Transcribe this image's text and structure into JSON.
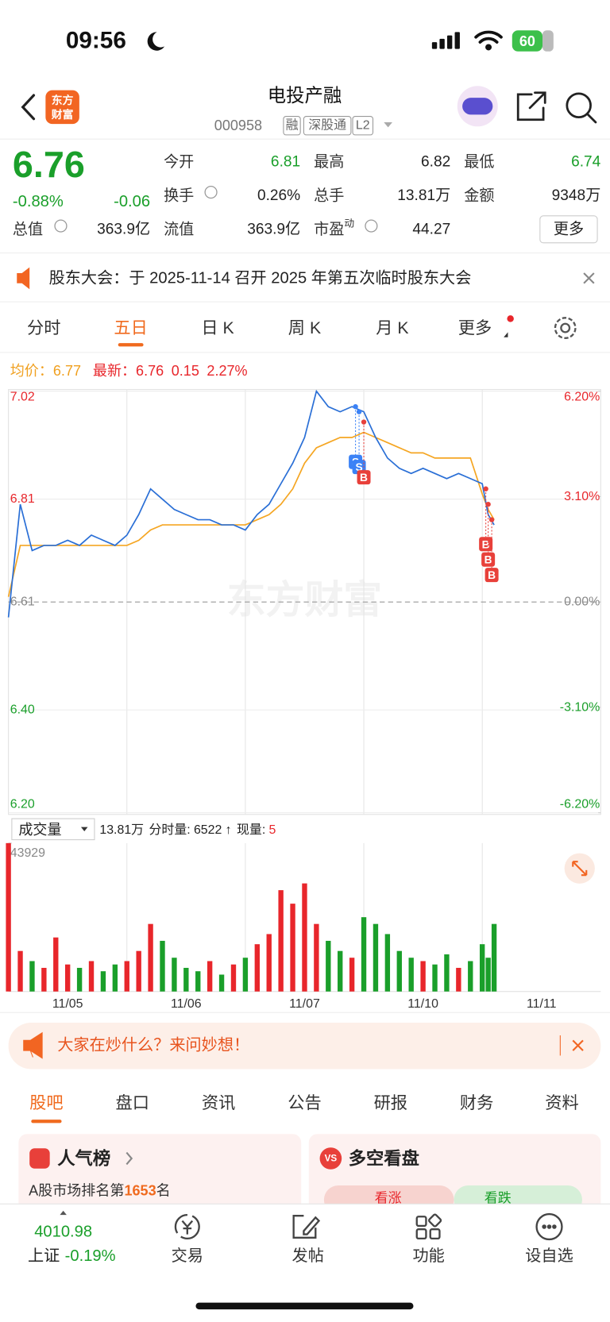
{
  "status_bar": {
    "time": "09:56",
    "battery": "60"
  },
  "header": {
    "logo": [
      "东方",
      "财富"
    ],
    "title": "电投产融",
    "code": "000958",
    "tags": [
      "融",
      "深股通",
      "L2"
    ]
  },
  "quote": {
    "price": "6.76",
    "change_pct": "-0.88%",
    "change": "-0.06",
    "fields": [
      {
        "label": "今开",
        "value": "6.81"
      },
      {
        "label": "最高",
        "value": "6.82"
      },
      {
        "label": "最低",
        "value": "6.74"
      },
      {
        "label": "换手",
        "value": "0.26%"
      },
      {
        "label": "总手",
        "value": "13.81万"
      },
      {
        "label": "金额",
        "value": "9348万"
      },
      {
        "label": "总值",
        "value": "363.9亿"
      },
      {
        "label": "流值",
        "value": "363.9亿"
      },
      {
        "label": "市盈",
        "sup": "动",
        "value": "44.27"
      }
    ],
    "more": "更多"
  },
  "notice": {
    "text": "股东大会：于 2025-11-14 召开 2025 年第五次临时股东大会"
  },
  "tabs": {
    "items": [
      "分时",
      "五日",
      "日 K",
      "周 K",
      "月 K",
      "更多"
    ],
    "active": 1
  },
  "chart_data": {
    "type": "line",
    "legend": {
      "avg_label": "均价：",
      "avg": "6.77",
      "latest_label": "最新：",
      "latest": "6.76",
      "change": "0.15",
      "change_pct": "2.27%"
    },
    "categories": [
      "11/05",
      "11/06",
      "11/07",
      "11/10",
      "11/11"
    ],
    "xlim": [
      0,
      5
    ],
    "x": [
      0,
      0.1,
      0.2,
      0.3,
      0.4,
      0.5,
      0.6,
      0.7,
      0.8,
      0.9,
      1,
      1.1,
      1.2,
      1.3,
      1.4,
      1.5,
      1.6,
      1.7,
      1.8,
      1.9,
      2,
      2.1,
      2.2,
      2.3,
      2.4,
      2.5,
      2.6,
      2.7,
      2.8,
      2.9,
      3,
      3.1,
      3.2,
      3.3,
      3.4,
      3.5,
      3.6,
      3.7,
      3.8,
      3.9,
      4,
      4.05,
      4.1
    ],
    "series": [
      {
        "color": "#2a6fd6",
        "values": [
          6.58,
          6.8,
          6.71,
          6.72,
          6.72,
          6.73,
          6.72,
          6.74,
          6.73,
          6.72,
          6.74,
          6.78,
          6.83,
          6.81,
          6.79,
          6.78,
          6.77,
          6.77,
          6.76,
          6.76,
          6.75,
          6.78,
          6.8,
          6.84,
          6.88,
          6.93,
          7.02,
          6.99,
          6.98,
          6.99,
          6.98,
          6.93,
          6.89,
          6.87,
          6.86,
          6.87,
          6.86,
          6.85,
          6.86,
          6.85,
          6.84,
          6.78,
          6.76
        ]
      },
      {
        "color": "#f5a623",
        "values": [
          6.62,
          6.72,
          6.72,
          6.72,
          6.72,
          6.72,
          6.72,
          6.72,
          6.72,
          6.72,
          6.72,
          6.73,
          6.75,
          6.76,
          6.76,
          6.76,
          6.76,
          6.76,
          6.76,
          6.76,
          6.76,
          6.77,
          6.78,
          6.8,
          6.83,
          6.88,
          6.91,
          6.92,
          6.93,
          6.93,
          6.94,
          6.93,
          6.92,
          6.91,
          6.9,
          6.9,
          6.89,
          6.89,
          6.89,
          6.89,
          6.82,
          6.79,
          6.77
        ]
      }
    ],
    "ylim": [
      6.2,
      7.02
    ],
    "yticks": [
      7.02,
      6.81,
      6.61,
      {
        "value": 6.4,
        "label": "6.40"
      },
      {
        "value": 6.2,
        "label": "6.20"
      }
    ],
    "y2lim": [
      -6.2,
      6.2
    ],
    "y2ticks": [
      {
        "value": 6.2,
        "label": "6.20%"
      },
      {
        "value": 3.1,
        "label": "3.10%"
      },
      {
        "value": 0,
        "label": "0.00%"
      },
      {
        "value": -3.1,
        "label": "-3.10%"
      },
      {
        "value": -6.2,
        "label": "-6.20%"
      }
    ],
    "trades": [
      {
        "label": "S",
        "x": 2.93,
        "price": 6.99,
        "color": "#3b82f6"
      },
      {
        "label": "S",
        "x": 2.96,
        "price": 6.98,
        "color": "#3b82f6"
      },
      {
        "label": "B",
        "x": 3.0,
        "price": 6.96,
        "color": "#e8403a"
      },
      {
        "label": "B",
        "x": 4.03,
        "price": 6.83,
        "color": "#e8403a"
      },
      {
        "label": "B",
        "x": 4.05,
        "price": 6.8,
        "color": "#e8403a"
      },
      {
        "label": "B",
        "x": 4.08,
        "price": 6.77,
        "color": "#e8403a"
      }
    ],
    "watermark": "东方财富",
    "volume": {
      "label": "成交量",
      "total": "13.81万",
      "tick_label": "分时量:",
      "tick_volume": "6522",
      "arrow": "↑",
      "now_label": "现量:",
      "now": "5",
      "ylim": [
        0,
        43929
      ],
      "yticks": [
        43929
      ],
      "up_color": "#e8262b",
      "down_color": "#1a9f2a",
      "values": [
        43929,
        12000,
        9000,
        7000,
        16000,
        8000,
        7000,
        9000,
        6000,
        8000,
        9000,
        12000,
        20000,
        15000,
        10000,
        7000,
        6000,
        9000,
        5000,
        8000,
        10000,
        14000,
        17000,
        30000,
        26000,
        32000,
        20000,
        15000,
        12000,
        10000,
        22000,
        20000,
        17000,
        12000,
        10000,
        9000,
        8000,
        11000,
        7000,
        9000,
        14000,
        10000,
        20000
      ]
    }
  },
  "banner": {
    "text": "大家在炒什么？来问妙想！"
  },
  "sub_tabs": {
    "items": [
      "股吧",
      "盘口",
      "资讯",
      "公告",
      "研报",
      "财务",
      "资料"
    ],
    "active": 0
  },
  "cards": {
    "left": {
      "title": "人气榜",
      "rank_prefix": "A股市场排名第",
      "rank": "1653",
      "rank_suffix": "名"
    },
    "right": {
      "icon": "VS",
      "title": "多空看盘",
      "bull": "看涨",
      "bear": "看跌"
    }
  },
  "bottom_nav": {
    "index_value": "4010.98",
    "index_name": "上证",
    "index_change": "-0.19%",
    "items": [
      "交易",
      "发帖",
      "功能",
      "设自选"
    ]
  }
}
